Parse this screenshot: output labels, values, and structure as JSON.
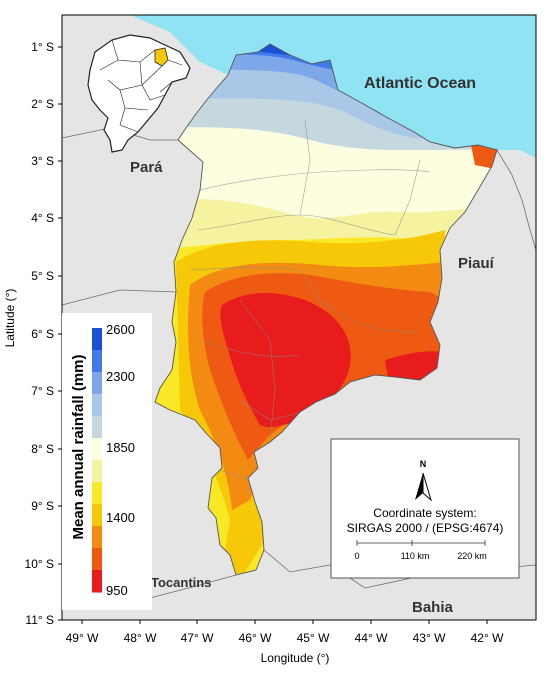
{
  "axes": {
    "ylabel": "Latitude (°)",
    "xlabel": "Longitude (°)",
    "lat_ticks": [
      "1° S",
      "2° S",
      "3° S",
      "4° S",
      "5° S",
      "6° S",
      "7° S",
      "8° S",
      "9° S",
      "10° S",
      "11° S"
    ],
    "lon_ticks": [
      "49° W",
      "48° W",
      "47° W",
      "46° W",
      "45° W",
      "44° W",
      "43° W",
      "42° W"
    ]
  },
  "places": {
    "ocean": "Atlantic Ocean",
    "para": "Pará",
    "piaui": "Piauí",
    "tocantins": "Tocantins",
    "bahia": "Bahia"
  },
  "legend": {
    "title": "Mean annual rainfall (mm)",
    "labels": [
      "2600",
      "2300",
      "1850",
      "1400",
      "950"
    ],
    "colors": [
      "#1a4fd6",
      "#3f7ae6",
      "#7ea7ea",
      "#a9c8e8",
      "#c5d8df",
      "#fdfde0",
      "#f6f3a0",
      "#f9e825",
      "#f7c807",
      "#f38a12",
      "#ee5a12",
      "#e81c1c"
    ]
  },
  "info": {
    "north": "N",
    "coord_title": "Coordinate system:",
    "coord_value": "SIRGAS 2000 / (EPSG:4674)",
    "scale": [
      "0",
      "110 km",
      "220 km"
    ]
  },
  "colors": {
    "ocean": "#8fe3f3",
    "land": "#e5e5e5",
    "highlight_state": "#f7c807"
  }
}
